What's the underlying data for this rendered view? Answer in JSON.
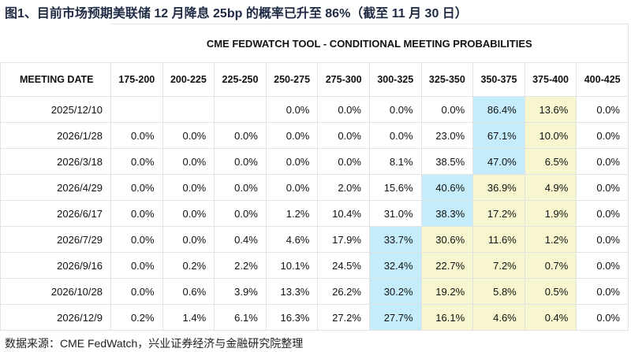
{
  "header": {
    "title": "图1、目前市场预期美联储 12 月降息 25bp 的概率已升至 86%（截至 11 月 30 日）"
  },
  "table": {
    "super_header": "CME FEDWATCH TOOL - CONDITIONAL MEETING PROBABILITIES",
    "columns": [
      "MEETING DATE",
      "175-200",
      "200-225",
      "225-250",
      "250-275",
      "275-300",
      "300-325",
      "325-350",
      "350-375",
      "375-400",
      "400-425"
    ],
    "rows": [
      [
        "2025/12/10",
        null,
        null,
        null,
        "0.0%",
        "0.0%",
        "0.0%",
        "0.0%",
        "86.4%",
        "13.6%",
        "0.0%"
      ],
      [
        "2026/1/28",
        "0.0%",
        "0.0%",
        "0.0%",
        "0.0%",
        "0.0%",
        "0.0%",
        "23.0%",
        "67.1%",
        "10.0%",
        "0.0%"
      ],
      [
        "2026/3/18",
        "0.0%",
        "0.0%",
        "0.0%",
        "0.0%",
        "0.0%",
        "8.1%",
        "38.5%",
        "47.0%",
        "6.5%",
        "0.0%"
      ],
      [
        "2026/4/29",
        "0.0%",
        "0.0%",
        "0.0%",
        "0.0%",
        "2.0%",
        "15.6%",
        "40.6%",
        "36.9%",
        "4.9%",
        "0.0%"
      ],
      [
        "2026/6/17",
        "0.0%",
        "0.0%",
        "0.0%",
        "1.2%",
        "10.4%",
        "31.0%",
        "38.3%",
        "17.2%",
        "1.9%",
        "0.0%"
      ],
      [
        "2026/7/29",
        "0.0%",
        "0.0%",
        "0.4%",
        "4.6%",
        "17.9%",
        "33.7%",
        "30.6%",
        "11.6%",
        "1.2%",
        "0.0%"
      ],
      [
        "2026/9/16",
        "0.0%",
        "0.2%",
        "2.2%",
        "10.1%",
        "24.5%",
        "32.4%",
        "22.7%",
        "7.2%",
        "0.7%",
        "0.0%"
      ],
      [
        "2026/10/28",
        "0.0%",
        "0.6%",
        "3.9%",
        "13.3%",
        "26.2%",
        "30.2%",
        "19.2%",
        "5.8%",
        "0.5%",
        "0.0%"
      ],
      [
        "2026/12/9",
        "0.2%",
        "1.4%",
        "6.1%",
        "16.3%",
        "27.2%",
        "27.7%",
        "16.1%",
        "4.6%",
        "0.4%",
        "0.0%"
      ]
    ]
  },
  "footer": {
    "source": "数据来源：CME FedWatch，兴业证券经济与金融研究院整理"
  }
}
